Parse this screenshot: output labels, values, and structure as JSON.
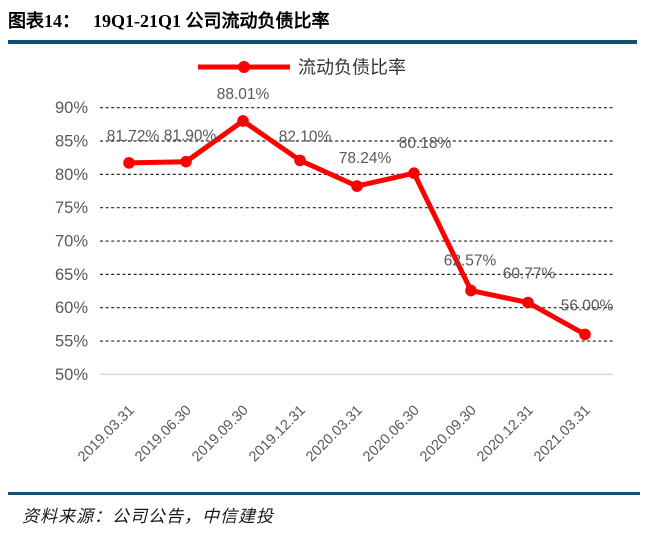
{
  "header": {
    "figure_label": "图表14：",
    "title": "19Q1-21Q1 公司流动负债比率"
  },
  "chart_data": {
    "type": "line",
    "title": "19Q1-21Q1 公司流动负债比率",
    "categories": [
      "2019.03.31",
      "2019.06.30",
      "2019.09.30",
      "2019.12.31",
      "2020.03.31",
      "2020.06.30",
      "2020.09.30",
      "2020.12.31",
      "2021.03.31"
    ],
    "series": [
      {
        "name": "流动负债比率",
        "color": "#FE0000",
        "values": [
          81.72,
          81.9,
          88.01,
          82.1,
          78.24,
          80.18,
          62.57,
          60.77,
          56.0
        ]
      }
    ],
    "data_labels": [
      "81.72%",
      "81.90%",
      "88.01%",
      "82.10%",
      "78.24%",
      "80.18%",
      "62.57%",
      "60.77%",
      "56.00%"
    ],
    "y_ticks": [
      "90%",
      "85%",
      "80%",
      "75%",
      "70%",
      "65%",
      "60%",
      "55%",
      "50%"
    ],
    "ylim": [
      50,
      90
    ],
    "ytick_step": 5,
    "xlabel": "",
    "ylabel": "",
    "grid": "horizontal-dashed",
    "legend_position": "top-center"
  },
  "footer": {
    "source": "资料来源：公司公告，中信建投"
  },
  "colors": {
    "title_rule": "#134F72",
    "series_line": "#FE0000",
    "grid_line": "#262626",
    "baseline": "#D9D9D9",
    "axis_label": "#595959",
    "data_label": "#595959",
    "legend_text": "#333333",
    "source_text": "#1A1A1A"
  }
}
